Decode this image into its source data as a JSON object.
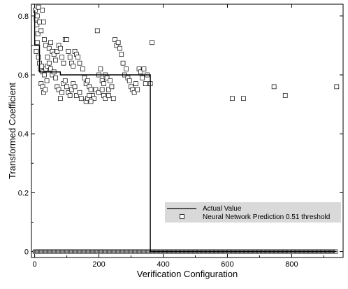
{
  "chart_data": {
    "type": "scatter",
    "xlabel": "Verification Configuration",
    "ylabel": "Transformed Coefficient",
    "xlim": [
      -10,
      960
    ],
    "ylim": [
      -0.02,
      0.84
    ],
    "x_ticks": [
      0,
      200,
      400,
      600,
      800
    ],
    "y_ticks": [
      0,
      0.2,
      0.4,
      0.6,
      0.8
    ],
    "x_tick_labels": [
      "0",
      "200",
      "400",
      "600",
      "800"
    ],
    "y_tick_labels": [
      "0",
      "0.2",
      "0.4",
      "0.6",
      "0.8"
    ],
    "grid": false,
    "legend_position": "bottom-right",
    "legend": [
      {
        "name": "Actual Value",
        "marker": "line"
      },
      {
        "name": "Neural Network Prediction 0.51 threshold",
        "marker": "square"
      }
    ],
    "actual_value_line": {
      "x": [
        0,
        0,
        15,
        15,
        80,
        80,
        360,
        360,
        940
      ],
      "y": [
        0.82,
        0.7,
        0.7,
        0.61,
        0.61,
        0.6,
        0.6,
        0.0,
        0.0
      ]
    },
    "prediction_points": [
      [
        2,
        0.82
      ],
      [
        5,
        0.79
      ],
      [
        7,
        0.77
      ],
      [
        8,
        0.8
      ],
      [
        10,
        0.74
      ],
      [
        12,
        0.83
      ],
      [
        15,
        0.78
      ],
      [
        20,
        0.75
      ],
      [
        24,
        0.82
      ],
      [
        28,
        0.78
      ],
      [
        30,
        0.72
      ],
      [
        35,
        0.7
      ],
      [
        40,
        0.66
      ],
      [
        45,
        0.69
      ],
      [
        50,
        0.71
      ],
      [
        55,
        0.68
      ],
      [
        5,
        0.68
      ],
      [
        8,
        0.71
      ],
      [
        12,
        0.66
      ],
      [
        15,
        0.64
      ],
      [
        18,
        0.62
      ],
      [
        22,
        0.63
      ],
      [
        25,
        0.61
      ],
      [
        30,
        0.6
      ],
      [
        35,
        0.62
      ],
      [
        40,
        0.63
      ],
      [
        45,
        0.64
      ],
      [
        50,
        0.62
      ],
      [
        55,
        0.6
      ],
      [
        60,
        0.61
      ],
      [
        65,
        0.59
      ],
      [
        20,
        0.57
      ],
      [
        25,
        0.56
      ],
      [
        28,
        0.54
      ],
      [
        33,
        0.55
      ],
      [
        38,
        0.58
      ],
      [
        60,
        0.67
      ],
      [
        65,
        0.65
      ],
      [
        70,
        0.68
      ],
      [
        75,
        0.7
      ],
      [
        80,
        0.69
      ],
      [
        85,
        0.66
      ],
      [
        90,
        0.64
      ],
      [
        95,
        0.72
      ],
      [
        100,
        0.72
      ],
      [
        105,
        0.68
      ],
      [
        110,
        0.66
      ],
      [
        115,
        0.64
      ],
      [
        120,
        0.63
      ],
      [
        70,
        0.56
      ],
      [
        75,
        0.55
      ],
      [
        80,
        0.52
      ],
      [
        85,
        0.54
      ],
      [
        90,
        0.57
      ],
      [
        95,
        0.58
      ],
      [
        100,
        0.56
      ],
      [
        105,
        0.54
      ],
      [
        110,
        0.53
      ],
      [
        115,
        0.55
      ],
      [
        120,
        0.57
      ],
      [
        125,
        0.68
      ],
      [
        130,
        0.67
      ],
      [
        135,
        0.66
      ],
      [
        140,
        0.64
      ],
      [
        150,
        0.62
      ],
      [
        155,
        0.59
      ],
      [
        160,
        0.57
      ],
      [
        165,
        0.58
      ],
      [
        170,
        0.56
      ],
      [
        175,
        0.55
      ],
      [
        180,
        0.53
      ],
      [
        185,
        0.52
      ],
      [
        190,
        0.55
      ],
      [
        125,
        0.56
      ],
      [
        130,
        0.53
      ],
      [
        140,
        0.54
      ],
      [
        145,
        0.52
      ],
      [
        160,
        0.51
      ],
      [
        165,
        0.52
      ],
      [
        170,
        0.53
      ],
      [
        175,
        0.51
      ],
      [
        195,
        0.75
      ],
      [
        200,
        0.6
      ],
      [
        205,
        0.62
      ],
      [
        210,
        0.58
      ],
      [
        215,
        0.57
      ],
      [
        220,
        0.6
      ],
      [
        225,
        0.59
      ],
      [
        230,
        0.55
      ],
      [
        235,
        0.58
      ],
      [
        240,
        0.56
      ],
      [
        245,
        0.52
      ],
      [
        200,
        0.54
      ],
      [
        210,
        0.55
      ],
      [
        215,
        0.53
      ],
      [
        220,
        0.52
      ],
      [
        230,
        0.53
      ],
      [
        250,
        0.72
      ],
      [
        255,
        0.7
      ],
      [
        260,
        0.71
      ],
      [
        265,
        0.69
      ],
      [
        270,
        0.67
      ],
      [
        275,
        0.64
      ],
      [
        280,
        0.6
      ],
      [
        285,
        0.62
      ],
      [
        290,
        0.59
      ],
      [
        295,
        0.58
      ],
      [
        300,
        0.56
      ],
      [
        305,
        0.55
      ],
      [
        310,
        0.54
      ],
      [
        315,
        0.57
      ],
      [
        320,
        0.55
      ],
      [
        325,
        0.62
      ],
      [
        330,
        0.61
      ],
      [
        335,
        0.59
      ],
      [
        340,
        0.62
      ],
      [
        345,
        0.57
      ],
      [
        350,
        0.6
      ],
      [
        360,
        0.57
      ],
      [
        365,
        0.71
      ],
      [
        615,
        0.52
      ],
      [
        650,
        0.52
      ],
      [
        745,
        0.56
      ],
      [
        780,
        0.53
      ],
      [
        940,
        0.56
      ]
    ],
    "zero_band_x": [
      0,
      940
    ]
  }
}
